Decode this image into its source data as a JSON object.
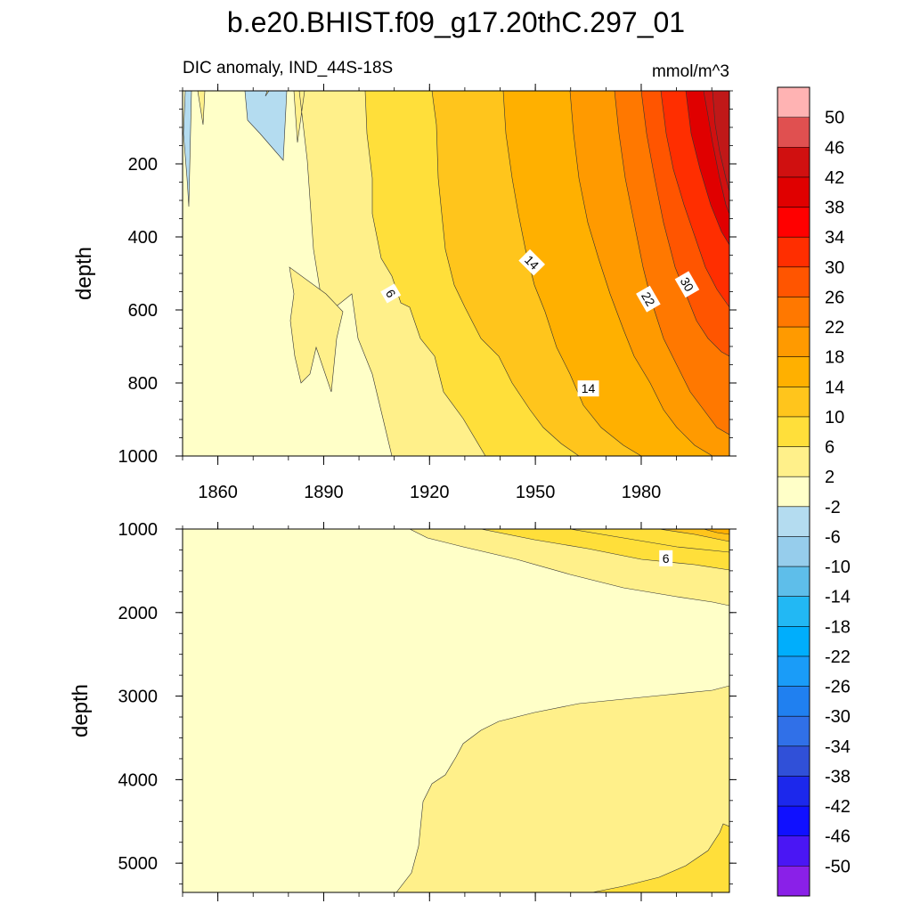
{
  "chart_data": {
    "type": "heatmap",
    "title": "b.e20.BHIST.f09_g17.20thC.297_01",
    "subtitle_left": "DIC anomaly, IND_44S-18S",
    "units": "mmol/m^3",
    "xlabel": "",
    "ylabel": "depth",
    "x_ticks": [
      1860,
      1890,
      1920,
      1950,
      1980
    ],
    "xlim": [
      1850,
      2005
    ],
    "panels": [
      {
        "name": "upper",
        "ylim": [
          0,
          1000
        ],
        "y_ticks": [
          200,
          400,
          600,
          800,
          1000
        ],
        "contour_labels": [
          {
            "text": "6",
            "year": 1909,
            "depth": 555
          },
          {
            "text": "14",
            "year": 1949,
            "depth": 470
          },
          {
            "text": "14",
            "year": 1965,
            "depth": 815
          },
          {
            "text": "22",
            "year": 1982,
            "depth": 570
          },
          {
            "text": "30",
            "year": 1993,
            "depth": 530
          }
        ]
      },
      {
        "name": "lower",
        "ylim": [
          1000,
          5350
        ],
        "y_ticks": [
          1000,
          2000,
          3000,
          4000,
          5000
        ],
        "contour_labels": [
          {
            "text": "6",
            "year": 1987,
            "depth": 1350
          }
        ]
      }
    ],
    "colorbar": {
      "levels": [
        "50",
        "46",
        "42",
        "38",
        "34",
        "30",
        "26",
        "22",
        "18",
        "14",
        "10",
        "6",
        "2",
        "-2",
        "-6",
        "-10",
        "-14",
        "-18",
        "-22",
        "-26",
        "-30",
        "-34",
        "-38",
        "-42",
        "-46",
        "-50"
      ],
      "colors": [
        "#ffb3b3",
        "#e05050",
        "#d01010",
        "#e00000",
        "#ff0000",
        "#ff2e00",
        "#ff5500",
        "#ff7800",
        "#ff9a00",
        "#ffb000",
        "#ffc51c",
        "#ffdf3a",
        "#fff08a",
        "#ffffc8",
        "#b4dcf0",
        "#96cdec",
        "#5ebeea",
        "#22b8f4",
        "#00aefc",
        "#1a9cf8",
        "#2080f0",
        "#3070e8",
        "#3050d8",
        "#1c28ec",
        "#1010ff",
        "#4a16f4",
        "#8a20e8"
      ]
    }
  }
}
